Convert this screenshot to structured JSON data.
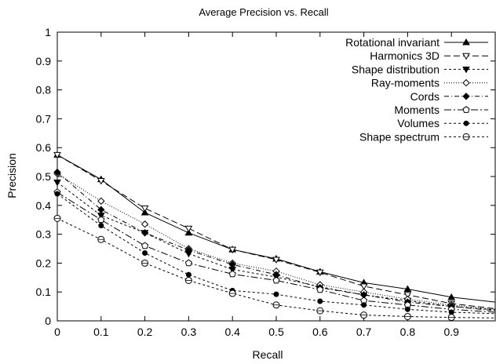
{
  "chart_data": {
    "type": "line",
    "title": "Average Precision vs. Recall",
    "xlabel": "Recall",
    "ylabel": "Precision",
    "xlim": [
      0,
      1
    ],
    "ylim": [
      0,
      1
    ],
    "x": [
      0,
      0.1,
      0.2,
      0.3,
      0.4,
      0.5,
      0.6,
      0.7,
      0.8,
      0.9,
      1.0
    ],
    "xticks": [
      "0",
      "0.1",
      "0.2",
      "0.3",
      "0.4",
      "0.5",
      "0.6",
      "0.7",
      "0.8",
      "0.9"
    ],
    "yticks": [
      "0",
      "0.1",
      "0.2",
      "0.3",
      "0.4",
      "0.5",
      "0.6",
      "0.7",
      "0.8",
      "0.9",
      "1"
    ],
    "grid": false,
    "legend_position": "top-right",
    "series": [
      {
        "name": "Rotational invariant",
        "marker": "triangle-up-filled",
        "dash": "solid",
        "values": [
          0.575,
          0.49,
          0.375,
          0.305,
          0.247,
          0.215,
          0.17,
          0.132,
          0.11,
          0.082,
          0.065
        ]
      },
      {
        "name": "Harmonics 3D",
        "marker": "triangle-down-open",
        "dash": "long-dash",
        "values": [
          0.575,
          0.485,
          0.39,
          0.32,
          0.247,
          0.212,
          0.168,
          0.12,
          0.09,
          0.06,
          0.042
        ]
      },
      {
        "name": "Shape distribution",
        "marker": "triangle-down-filled",
        "dash": "short-dash",
        "values": [
          0.48,
          0.365,
          0.305,
          0.233,
          0.178,
          0.152,
          0.118,
          0.09,
          0.07,
          0.05,
          0.038
        ]
      },
      {
        "name": "Ray-moments",
        "marker": "diamond-open",
        "dash": "dotted",
        "values": [
          0.51,
          0.415,
          0.335,
          0.25,
          0.2,
          0.172,
          0.125,
          0.1,
          0.075,
          0.055,
          0.04
        ]
      },
      {
        "name": "Cords",
        "marker": "diamond-filled",
        "dash": "dash-dot",
        "values": [
          0.515,
          0.385,
          0.305,
          0.245,
          0.195,
          0.16,
          0.115,
          0.09,
          0.065,
          0.05,
          0.035
        ]
      },
      {
        "name": "Moments",
        "marker": "pentagon-open",
        "dash": "dash-dot-long",
        "values": [
          0.445,
          0.35,
          0.26,
          0.2,
          0.162,
          0.14,
          0.108,
          0.07,
          0.055,
          0.04,
          0.03
        ]
      },
      {
        "name": "Volumes",
        "marker": "circle-filled",
        "dash": "short-dash",
        "values": [
          0.44,
          0.33,
          0.235,
          0.16,
          0.105,
          0.092,
          0.068,
          0.055,
          0.04,
          0.03,
          0.025
        ]
      },
      {
        "name": "Shape spectrum",
        "marker": "circle-open",
        "dash": "short-dash",
        "values": [
          0.355,
          0.282,
          0.2,
          0.14,
          0.095,
          0.055,
          0.035,
          0.02,
          0.015,
          0.012,
          0.01
        ]
      }
    ]
  }
}
